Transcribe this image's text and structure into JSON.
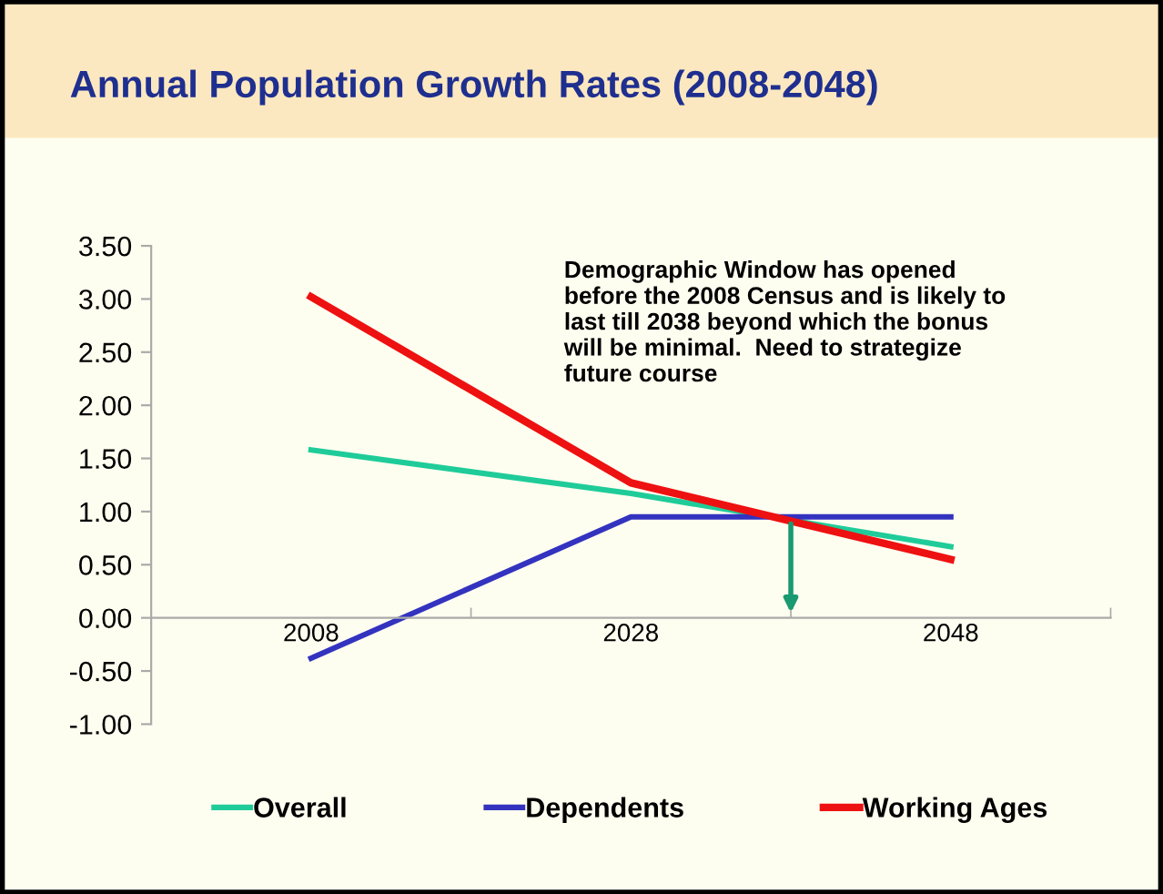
{
  "chart_data": {
    "type": "line",
    "title": "Annual Population Growth Rates (2008-2048)",
    "categories": [
      "2008",
      "2028",
      "2048"
    ],
    "series": [
      {
        "name": "Overall",
        "color": "#1fcc99",
        "values": [
          1.58,
          1.17,
          0.67
        ]
      },
      {
        "name": "Dependents",
        "color": "#3333c0",
        "values": [
          -0.38,
          0.95,
          0.95
        ]
      },
      {
        "name": "Working Ages",
        "color": "#ee1111",
        "values": [
          3.02,
          1.27,
          0.55
        ]
      }
    ],
    "ylim": [
      -1.0,
      3.5
    ],
    "yticks": [
      {
        "value": -1.0,
        "label": "-1.00"
      },
      {
        "value": -0.5,
        "label": "-0.50"
      },
      {
        "value": 0.0,
        "label": "0.00"
      },
      {
        "value": 0.5,
        "label": "0.50"
      },
      {
        "value": 1.0,
        "label": "1.00"
      },
      {
        "value": 1.5,
        "label": "1.50"
      },
      {
        "value": 2.0,
        "label": "2.00"
      },
      {
        "value": 2.5,
        "label": "2.50"
      },
      {
        "value": 3.0,
        "label": "3.00"
      },
      {
        "value": 3.5,
        "label": "3.50"
      }
    ],
    "annotations": [
      "Demographic Window has opened\nbefore the 2008 Census and is likely to\nlast till 2038 beyond which the bonus\nwill be minimal.  Need to strategize\nfuture course"
    ],
    "grid": false,
    "legend": "bottom",
    "marker": "none",
    "line_style": "solid"
  }
}
